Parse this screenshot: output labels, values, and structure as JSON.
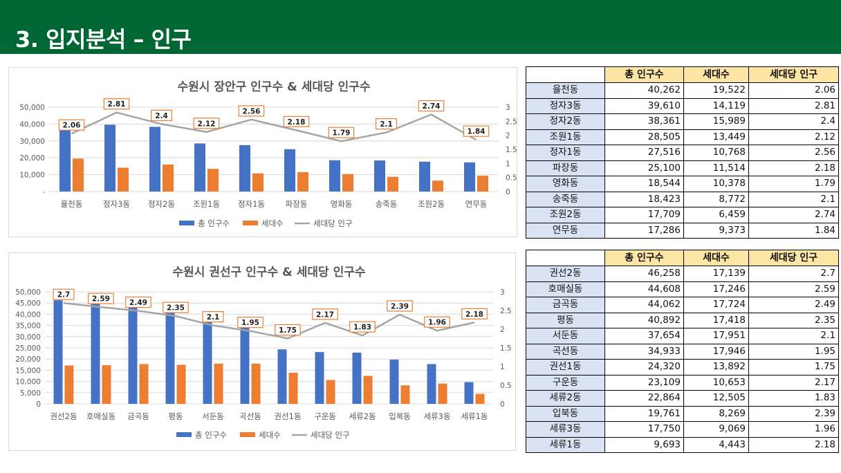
{
  "header": {
    "title": "3. 입지분석 – 인구",
    "color": "#006633"
  },
  "colors": {
    "bar1": "#4472c4",
    "bar2": "#ed7d31",
    "line": "#a5a5a5",
    "label_border": "#ed7d31"
  },
  "chart_data": [
    {
      "type": "bar",
      "title": "수원시 장안구 인구수 & 세대당 인구수",
      "categories": [
        "율천동",
        "정자3동",
        "정자2동",
        "조원1동",
        "정자1동",
        "파장동",
        "영화동",
        "송죽동",
        "조원2동",
        "연무동"
      ],
      "series": [
        {
          "name": "총 인구수",
          "type": "bar",
          "axis": "left",
          "values": [
            40262,
            39610,
            38361,
            28505,
            27516,
            25100,
            18544,
            18423,
            17709,
            17286
          ]
        },
        {
          "name": "세대수",
          "type": "bar",
          "axis": "left",
          "values": [
            19522,
            14119,
            15989,
            13449,
            10768,
            11514,
            10378,
            8772,
            6459,
            9373
          ]
        },
        {
          "name": "세대당 인구",
          "type": "line",
          "axis": "right",
          "values": [
            2.06,
            2.81,
            2.4,
            2.12,
            2.56,
            2.18,
            1.79,
            2.1,
            2.74,
            1.84
          ]
        }
      ],
      "left_axis": {
        "min": 0,
        "max": 50000,
        "ticks": [
          "-",
          "10,000",
          "20,000",
          "30,000",
          "40,000",
          "50,000"
        ]
      },
      "right_axis": {
        "min": 0,
        "max": 3,
        "ticks": [
          "0",
          "0.5",
          "1",
          "1.5",
          "2",
          "2.5",
          "3"
        ]
      },
      "legend_position": "bottom",
      "grid": true
    },
    {
      "type": "bar",
      "title": "수원시 권선구 인구수 & 세대당 인구수",
      "categories": [
        "권선2동",
        "호매실동",
        "금곡동",
        "평동",
        "서둔동",
        "곡선동",
        "권선1동",
        "구운동",
        "세류2동",
        "입북동",
        "세류3동",
        "세류1동"
      ],
      "series": [
        {
          "name": "총 인구수",
          "type": "bar",
          "axis": "left",
          "values": [
            46258,
            44608,
            44062,
            40892,
            37654,
            34933,
            24320,
            23109,
            22864,
            19761,
            17750,
            9693
          ]
        },
        {
          "name": "세대수",
          "type": "bar",
          "axis": "left",
          "values": [
            17139,
            17246,
            17724,
            17418,
            17951,
            17946,
            13892,
            10653,
            12505,
            8269,
            9069,
            4443
          ]
        },
        {
          "name": "세대당 인구",
          "type": "line",
          "axis": "right",
          "values": [
            2.7,
            2.59,
            2.49,
            2.35,
            2.1,
            1.95,
            1.75,
            2.17,
            1.83,
            2.39,
            1.96,
            2.18
          ]
        }
      ],
      "left_axis": {
        "min": 0,
        "max": 50000,
        "ticks": [
          "0",
          "5,000",
          "10,000",
          "15,000",
          "20,000",
          "25,000",
          "30,000",
          "35,000",
          "40,000",
          "45,000",
          "50,000"
        ]
      },
      "right_axis": {
        "min": 0,
        "max": 3,
        "ticks": [
          "0",
          "0.5",
          "1",
          "1.5",
          "2",
          "2.5",
          "3"
        ]
      },
      "legend_position": "bottom",
      "grid": true
    }
  ],
  "tables": [
    {
      "headers": [
        "",
        "총 인구수",
        "세대수",
        "세대당 인구"
      ],
      "rows": [
        [
          "율천동",
          "40,262",
          "19,522",
          "2.06"
        ],
        [
          "정자3동",
          "39,610",
          "14,119",
          "2.81"
        ],
        [
          "정자2동",
          "38,361",
          "15,989",
          "2.4"
        ],
        [
          "조원1동",
          "28,505",
          "13,449",
          "2.12"
        ],
        [
          "정자1동",
          "27,516",
          "10,768",
          "2.56"
        ],
        [
          "파장동",
          "25,100",
          "11,514",
          "2.18"
        ],
        [
          "영화동",
          "18,544",
          "10,378",
          "1.79"
        ],
        [
          "송죽동",
          "18,423",
          "8,772",
          "2.1"
        ],
        [
          "조원2동",
          "17,709",
          "6,459",
          "2.74"
        ],
        [
          "연무동",
          "17,286",
          "9,373",
          "1.84"
        ]
      ]
    },
    {
      "headers": [
        "",
        "총 인구수",
        "세대수",
        "세대당 인구"
      ],
      "rows": [
        [
          "권선2동",
          "46,258",
          "17,139",
          "2.7"
        ],
        [
          "호매실동",
          "44,608",
          "17,246",
          "2.59"
        ],
        [
          "금곡동",
          "44,062",
          "17,724",
          "2.49"
        ],
        [
          "평동",
          "40,892",
          "17,418",
          "2.35"
        ],
        [
          "서둔동",
          "37,654",
          "17,951",
          "2.1"
        ],
        [
          "곡선동",
          "34,933",
          "17,946",
          "1.95"
        ],
        [
          "권선1동",
          "24,320",
          "13,892",
          "1.75"
        ],
        [
          "구운동",
          "23,109",
          "10,653",
          "2.17"
        ],
        [
          "세류2동",
          "22,864",
          "12,505",
          "1.83"
        ],
        [
          "입북동",
          "19,761",
          "8,269",
          "2.39"
        ],
        [
          "세류3동",
          "17,750",
          "9,069",
          "1.96"
        ],
        [
          "세류1동",
          "9,693",
          "4,443",
          "2.18"
        ]
      ]
    }
  ]
}
